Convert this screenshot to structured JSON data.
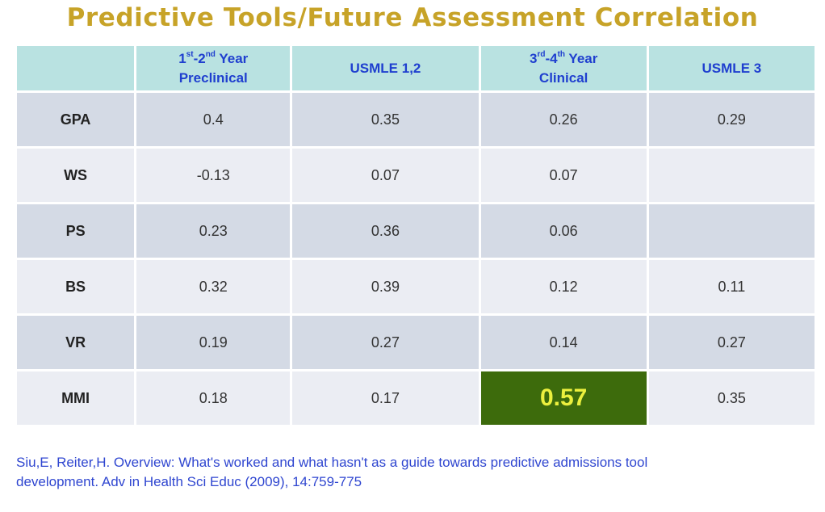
{
  "title": "Predictive Tools/Future Assessment Correlation",
  "columns": [
    {
      "pre_a": "1",
      "sup_a": "st",
      "mid": "-2",
      "sup_b": "nd",
      "rest": " Year",
      "line2": "Preclinical"
    },
    {
      "text": "USMLE 1,2"
    },
    {
      "pre_a": "3",
      "sup_a": "rd",
      "mid": "-4",
      "sup_b": "th",
      "rest": " Year",
      "line2": "Clinical"
    },
    {
      "text": "USMLE 3"
    }
  ],
  "rows": [
    {
      "label": "GPA",
      "values": [
        "0.4",
        "0.35",
        "0.26",
        "0.29"
      ]
    },
    {
      "label": "WS",
      "values": [
        "-0.13",
        "0.07",
        "0.07",
        ""
      ]
    },
    {
      "label": "PS",
      "values": [
        "0.23",
        "0.36",
        "0.06",
        ""
      ]
    },
    {
      "label": "BS",
      "values": [
        "0.32",
        "0.39",
        "0.12",
        "0.11"
      ]
    },
    {
      "label": "VR",
      "values": [
        "0.19",
        "0.27",
        "0.14",
        "0.27"
      ]
    },
    {
      "label": "MMI",
      "values": [
        "0.18",
        "0.17",
        "0.57",
        "0.35"
      ]
    }
  ],
  "highlight": {
    "row": 5,
    "col": 2,
    "bg": "#3d6b0c",
    "fg": "#ecf03e"
  },
  "colors": {
    "title": "#c7a328",
    "header_bg": "#b9e2e1",
    "header_text": "#1f3fcf",
    "row_shade": "#d4dae5",
    "row_light": "#ebedf3",
    "citation": "#2f46d0"
  },
  "citation": {
    "line1": "Siu,E, Reiter,H. Overview: What's worked and what hasn't as a guide towards predictive admissions tool",
    "line2": "development. Adv in Health Sci Educ (2009), 14:759-775"
  }
}
